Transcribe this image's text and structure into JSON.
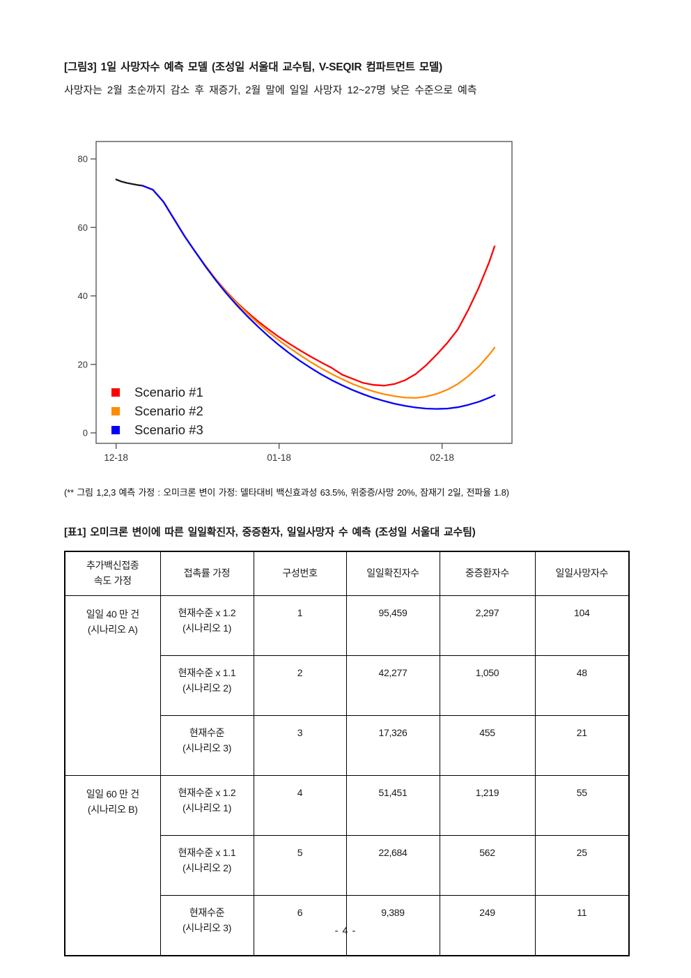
{
  "page": {
    "number": "- 4 -"
  },
  "figure": {
    "title": "[그림3] 1일 사망자수 예측 모델 (조성일 서울대 교수팀, V-SEQIR 컴파트먼트 모델)",
    "subtitle": "사망자는 2월 초순까지 감소 후 재증가, 2월 말에 일일 사망자 12~27명 낮은 수준으로 예측",
    "footnote": "(** 그림 1,2,3 예측 가정 : 오미크론 변이 가정: 델타대비 백신효과성 63.5%, 위중증/사망 20%, 잠재기 2일, 전파율 1.8)"
  },
  "chart_data": {
    "type": "line",
    "title": "",
    "xlabel": "",
    "ylabel": "",
    "ylim": [
      0,
      80
    ],
    "xlim_days": [
      -3.8,
      75.3
    ],
    "grid": false,
    "y_ticks": [
      0,
      20,
      40,
      60,
      80
    ],
    "x_ticks": [
      {
        "day": 0,
        "label": "12-18"
      },
      {
        "day": 31,
        "label": "01-18"
      },
      {
        "day": 62,
        "label": "02-18"
      }
    ],
    "axis_color": "#4a4a4a",
    "tick_label_color": "#333333",
    "legend_position": "bottom-left",
    "legend": [
      {
        "label": "Scenario #1",
        "color": "#ff0000"
      },
      {
        "label": "Scenario #2",
        "color": "#ff8c00"
      },
      {
        "label": "Scenario #3",
        "color": "#0000ff"
      }
    ],
    "series": [
      {
        "name": "observed",
        "color": "#1a1a1a",
        "x": [
          0,
          1,
          2,
          3,
          4,
          5
        ],
        "values": [
          74,
          73.4,
          73,
          72.7,
          72.4,
          72.2
        ]
      },
      {
        "name": "Scenario #1",
        "color": "#ff0000",
        "x": [
          5,
          7,
          9,
          11,
          13,
          15,
          17,
          19,
          21,
          23,
          25,
          27,
          29,
          31,
          33,
          35,
          37,
          39,
          41,
          43,
          45,
          47,
          49,
          51,
          53,
          55,
          57,
          59,
          61,
          63,
          65,
          67,
          69,
          71,
          72
        ],
        "values": [
          72.2,
          71.0,
          67.5,
          62.5,
          57.5,
          53.0,
          48.8,
          44.8,
          41.2,
          38.0,
          35.2,
          32.6,
          30.2,
          28.0,
          26.0,
          24.1,
          22.3,
          20.6,
          19.0,
          17.0,
          15.8,
          14.6,
          14.0,
          13.8,
          14.3,
          15.4,
          17.2,
          19.8,
          22.9,
          26.3,
          30.2,
          36.0,
          42.5,
          50.0,
          54.5
        ]
      },
      {
        "name": "Scenario #2",
        "color": "#ff8c00",
        "x": [
          5,
          7,
          9,
          11,
          13,
          15,
          17,
          19,
          21,
          23,
          25,
          27,
          29,
          31,
          33,
          35,
          37,
          39,
          41,
          43,
          45,
          47,
          49,
          51,
          53,
          55,
          57,
          59,
          61,
          63,
          65,
          67,
          69,
          71,
          72
        ],
        "values": [
          72.2,
          71.0,
          67.5,
          62.5,
          57.5,
          53.0,
          48.8,
          44.8,
          41.0,
          37.8,
          34.8,
          32.0,
          29.4,
          27.0,
          24.8,
          22.7,
          20.7,
          18.9,
          17.2,
          15.7,
          14.3,
          13.1,
          12.1,
          11.3,
          10.7,
          10.3,
          10.2,
          10.6,
          11.4,
          12.6,
          14.3,
          16.6,
          19.4,
          22.9,
          24.9
        ]
      },
      {
        "name": "Scenario #3",
        "color": "#0000ff",
        "x": [
          5,
          7,
          9,
          11,
          13,
          15,
          17,
          19,
          21,
          23,
          25,
          27,
          29,
          31,
          33,
          35,
          37,
          39,
          41,
          43,
          45,
          47,
          49,
          51,
          53,
          55,
          57,
          59,
          61,
          63,
          65,
          67,
          69,
          71,
          72
        ],
        "values": [
          72.2,
          71.0,
          67.5,
          62.5,
          57.5,
          53.0,
          48.6,
          44.5,
          40.7,
          37.2,
          34.0,
          31.0,
          28.2,
          25.6,
          23.2,
          21.0,
          19.0,
          17.1,
          15.4,
          13.9,
          12.5,
          11.3,
          10.2,
          9.3,
          8.5,
          7.9,
          7.4,
          7.1,
          7.0,
          7.1,
          7.5,
          8.2,
          9.1,
          10.3,
          11.0
        ]
      }
    ]
  },
  "table": {
    "title": "[표1] 오미크론 변이에 따른 일일확진자, 중증환자, 일일사망자 수 예측 (조성일 서울대 교수팀)",
    "headers": [
      "추가백신접종\n속도 가정",
      "접촉률 가정",
      "구성번호",
      "일일확진자수",
      "중증환자수",
      "일일사망자수"
    ],
    "groups": [
      {
        "label": "일일 40 만 건\n(시나리오 A)"
      },
      {
        "label": "일일 60 만 건\n(시나리오 B)"
      }
    ],
    "rows": [
      {
        "contact": "현재수준 x 1.2\n(시나리오 1)",
        "num": "1",
        "confirmed": "95,459",
        "severe": "2,297",
        "deaths": "104"
      },
      {
        "contact": "현재수준 x 1.1\n(시나리오 2)",
        "num": "2",
        "confirmed": "42,277",
        "severe": "1,050",
        "deaths": "48"
      },
      {
        "contact": "현재수준\n(시나리오 3)",
        "num": "3",
        "confirmed": "17,326",
        "severe": "455",
        "deaths": "21"
      },
      {
        "contact": "현재수준 x 1.2\n(시나리오 1)",
        "num": "4",
        "confirmed": "51,451",
        "severe": "1,219",
        "deaths": "55"
      },
      {
        "contact": "현재수준 x 1.1\n(시나리오 2)",
        "num": "5",
        "confirmed": "22,684",
        "severe": "562",
        "deaths": "25"
      },
      {
        "contact": "현재수준\n(시나리오 3)",
        "num": "6",
        "confirmed": "9,389",
        "severe": "249",
        "deaths": "11"
      }
    ]
  }
}
